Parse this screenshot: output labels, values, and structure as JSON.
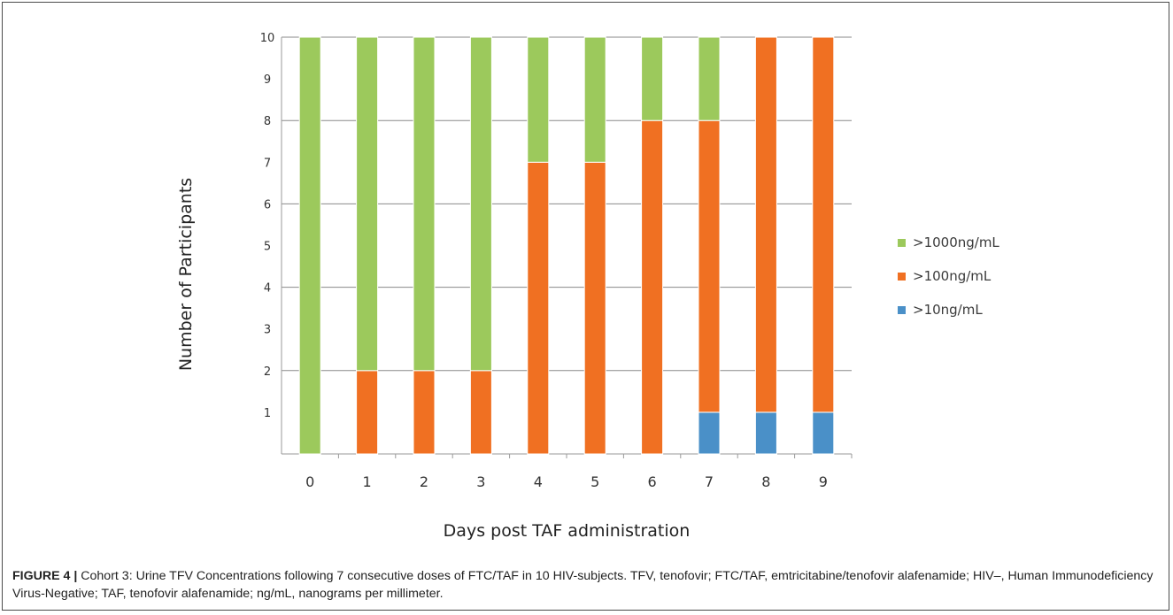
{
  "chart_data": {
    "type": "bar",
    "stacked": true,
    "categories": [
      "0",
      "1",
      "2",
      "3",
      "4",
      "5",
      "6",
      "7",
      "8",
      "9"
    ],
    "series": [
      {
        "name": ">10ng/mL",
        "color": "#4a90c8",
        "values": [
          0,
          0,
          0,
          0,
          0,
          0,
          0,
          1,
          1,
          1
        ]
      },
      {
        "name": ">100ng/mL",
        "color": "#f07022",
        "values": [
          0,
          2,
          2,
          2,
          7,
          7,
          8,
          7,
          9,
          9
        ]
      },
      {
        "name": ">1000ng/mL",
        "color": "#9cc95c",
        "values": [
          10,
          8,
          8,
          8,
          3,
          3,
          2,
          2,
          0,
          0
        ]
      }
    ],
    "yticks": [
      "1",
      "2",
      "3",
      "4",
      "5",
      "6",
      "7",
      "8",
      "9",
      "10"
    ],
    "ylim": [
      0,
      10
    ],
    "xlabel": "Days post TAF administration",
    "ylabel": "Number of Participants",
    "grid": true,
    "legend_position": "right"
  },
  "caption": {
    "label": "FIGURE 4 |",
    "text": " Cohort 3: Urine TFV Concentrations following 7 consecutive doses of FTC/TAF in 10 HIV-subjects. TFV, tenofovir; FTC/TAF, emtricitabine/tenofovir alafenamide; HIV–, Human Immunodeficiency Virus-Negative; TAF, tenofovir alafenamide; ng/mL, nanograms per millimeter."
  }
}
